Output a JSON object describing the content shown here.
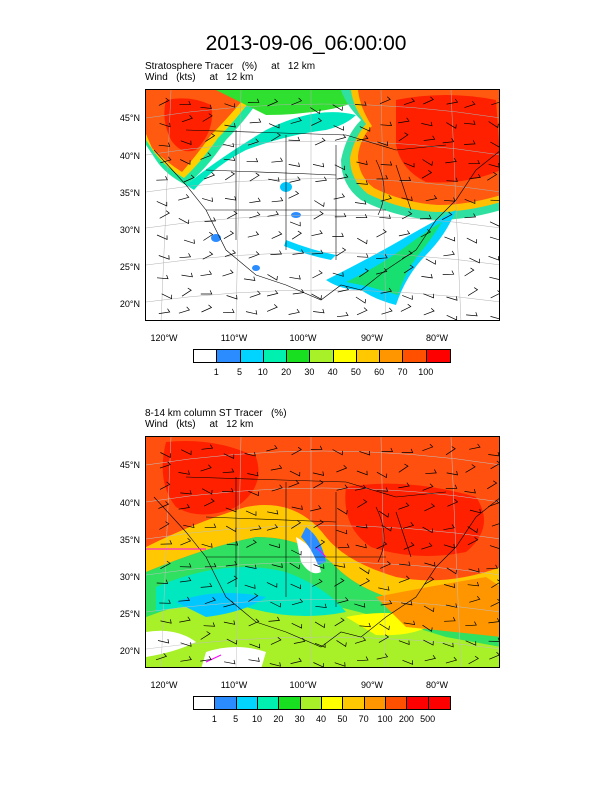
{
  "page_title": "2013-09-06_06:00:00",
  "panels": [
    {
      "line1": "Stratosphere Tracer   (%)     at   12 km",
      "line2": "Wind   (kts)     at   12 km",
      "lat_labels": [
        "45°N",
        "40°N",
        "35°N",
        "30°N",
        "25°N",
        "20°N"
      ],
      "lon_labels": [
        "120°W",
        "110°W",
        "100°W",
        "90°W",
        "80°W"
      ],
      "colorbar_labels": [
        "1",
        "5",
        "10",
        "20",
        "30",
        "40",
        "50",
        "60",
        "70",
        "100"
      ]
    },
    {
      "line1": "8-14 km column ST Tracer   (%)",
      "line2": "Wind   (kts)     at   12 km",
      "lat_labels": [
        "45°N",
        "40°N",
        "35°N",
        "30°N",
        "25°N",
        "20°N"
      ],
      "lon_labels": [
        "120°W",
        "110°W",
        "100°W",
        "90°W",
        "80°W"
      ],
      "colorbar_labels": [
        "1",
        "5",
        "10",
        "20",
        "30",
        "40",
        "50",
        "70",
        "100",
        "200",
        "500"
      ]
    }
  ],
  "colorbar_colors": [
    "#ffffff",
    "#2a8cff",
    "#00d4ff",
    "#00f0b0",
    "#18e020",
    "#a8f028",
    "#ffff00",
    "#ffc800",
    "#ff9600",
    "#ff5000",
    "#ff0000"
  ]
}
